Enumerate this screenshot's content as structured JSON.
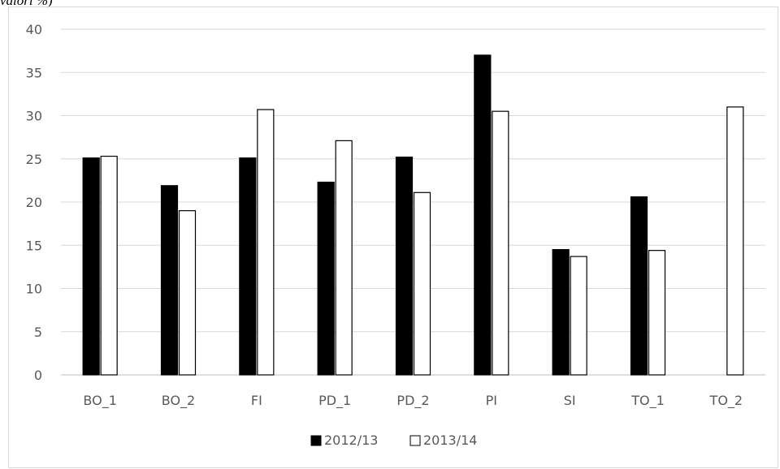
{
  "caption_fragment": "valori %)",
  "chart_data": {
    "type": "bar",
    "categories": [
      "BO_1",
      "BO_2",
      "FI",
      "PD_1",
      "PD_2",
      "PI",
      "SI",
      "TO_1",
      "TO_2"
    ],
    "series": [
      {
        "name": "2012/13",
        "color": "#000000",
        "values": [
          25.1,
          21.9,
          25.1,
          22.3,
          25.2,
          37.0,
          14.5,
          20.6,
          0
        ]
      },
      {
        "name": "2013/14",
        "color": "#ffffff",
        "values": [
          25.3,
          19.0,
          30.7,
          27.1,
          21.1,
          30.5,
          13.7,
          14.4,
          31.0
        ]
      }
    ],
    "ylim": [
      0,
      40
    ],
    "yticks": [
      0,
      5,
      10,
      15,
      20,
      25,
      30,
      35,
      40
    ],
    "grid": true,
    "legend_position": "bottom-center"
  }
}
